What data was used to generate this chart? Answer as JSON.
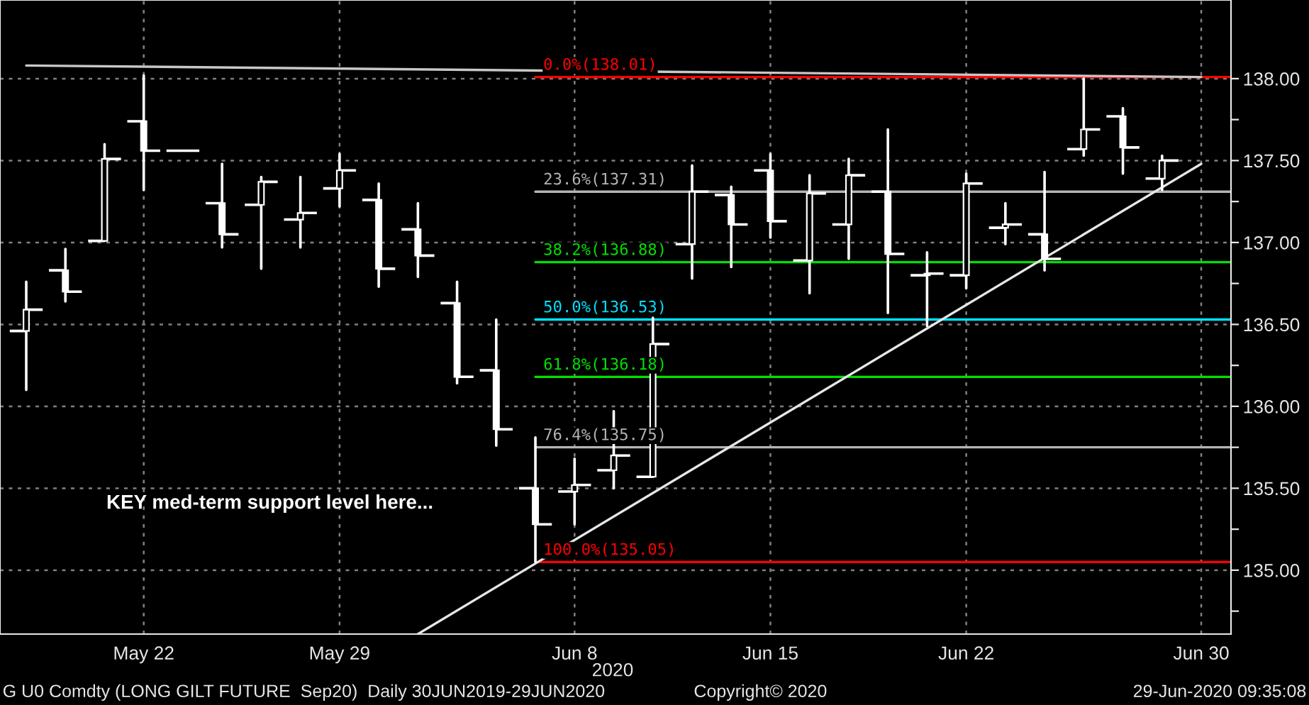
{
  "chart_data": {
    "type": "candlestick",
    "categories": [
      null,
      null,
      null,
      "May 22",
      null,
      null,
      null,
      null,
      "May 29",
      null,
      null,
      null,
      null,
      null,
      "Jun 8",
      null,
      null,
      null,
      null,
      "Jun 15",
      null,
      null,
      null,
      null,
      "Jun 22",
      null,
      null,
      null,
      null,
      null,
      "Jun 30"
    ],
    "ohlc": [
      [
        136.46,
        136.76,
        136.1,
        136.59
      ],
      [
        136.83,
        136.96,
        136.64,
        136.7
      ],
      [
        137.01,
        137.6,
        137.01,
        137.51
      ],
      [
        137.74,
        138.02,
        137.32,
        137.56
      ],
      [
        137.56,
        137.56,
        137.56,
        137.56
      ],
      [
        137.24,
        137.48,
        136.97,
        137.05
      ],
      [
        137.23,
        137.4,
        136.84,
        137.37
      ],
      [
        137.14,
        137.4,
        136.97,
        137.18
      ],
      [
        137.33,
        137.54,
        137.22,
        137.44
      ],
      [
        137.26,
        137.36,
        136.73,
        136.84
      ],
      [
        137.08,
        137.24,
        136.79,
        136.92
      ],
      [
        136.63,
        136.76,
        136.14,
        136.18
      ],
      [
        136.22,
        136.53,
        135.76,
        135.86
      ],
      [
        135.5,
        135.81,
        135.05,
        135.28
      ],
      [
        135.48,
        135.68,
        135.28,
        135.52
      ],
      [
        135.61,
        135.97,
        135.5,
        135.7
      ],
      [
        135.57,
        136.54,
        135.57,
        136.38
      ],
      [
        136.99,
        137.47,
        136.78,
        137.31
      ],
      [
        137.29,
        137.34,
        136.85,
        137.11
      ],
      [
        137.44,
        137.54,
        137.03,
        137.13
      ],
      [
        136.89,
        137.41,
        136.69,
        137.3
      ],
      [
        137.11,
        137.51,
        136.9,
        137.41
      ],
      [
        137.31,
        137.69,
        136.57,
        136.93
      ],
      [
        136.8,
        136.94,
        136.49,
        136.81
      ],
      [
        136.8,
        137.42,
        136.72,
        137.36
      ],
      [
        137.09,
        137.24,
        136.99,
        137.11
      ],
      [
        137.05,
        137.43,
        136.83,
        136.9
      ],
      [
        137.57,
        138.0,
        137.53,
        137.69
      ],
      [
        137.77,
        137.82,
        137.42,
        137.58
      ],
      [
        137.39,
        137.53,
        137.32,
        137.5
      ],
      null
    ],
    "color": "#ffffff",
    "series": [
      {
        "type": "line",
        "values": [
          138.08,
          null,
          null,
          null,
          null,
          null,
          null,
          null,
          null,
          null,
          null,
          null,
          null,
          null,
          null,
          null,
          null,
          null,
          null,
          null,
          null,
          null,
          null,
          null,
          null,
          null,
          null,
          null,
          null,
          null,
          138.01
        ],
        "color": "#c8c8c8"
      },
      {
        "type": "line",
        "values": [
          null,
          null,
          null,
          null,
          null,
          null,
          null,
          null,
          null,
          null,
          134.61,
          null,
          null,
          null,
          null,
          null,
          null,
          null,
          null,
          null,
          null,
          null,
          null,
          null,
          null,
          null,
          null,
          null,
          null,
          null,
          137.48
        ],
        "color": "#e6e6e6"
      }
    ],
    "ylim": [
      134.61,
      138.48
    ],
    "yticks": [
      {
        "value": 134.75,
        "label": null
      },
      {
        "value": 135,
        "label": "135.00"
      },
      {
        "value": 135.25,
        "label": null
      },
      {
        "value": 135.5,
        "label": "135.50"
      },
      {
        "value": 135.75,
        "label": null
      },
      {
        "value": 136,
        "label": "136.00"
      },
      {
        "value": 136.25,
        "label": null
      },
      {
        "value": 136.5,
        "label": "136.50"
      },
      {
        "value": 136.75,
        "label": null
      },
      {
        "value": 137,
        "label": "137.00"
      },
      {
        "value": 137.25,
        "label": null
      },
      {
        "value": 137.5,
        "label": "137.50"
      },
      {
        "value": 137.75,
        "label": null
      },
      {
        "value": 138,
        "label": "138.00"
      }
    ],
    "xlabel": "2020",
    "grid": true,
    "ref_lines": [
      {
        "axis": "y",
        "value": 138.01,
        "label": "0.0%(138.01)",
        "color": "#ff0000"
      },
      {
        "axis": "y",
        "value": 137.31,
        "label": "23.6%(137.31)",
        "color": "#b4b4b4"
      },
      {
        "axis": "y",
        "value": 136.88,
        "label": "38.2%(136.88)",
        "color": "#00e000"
      },
      {
        "axis": "y",
        "value": 136.53,
        "label": "50.0%(136.53)",
        "color": "#00e0ff"
      },
      {
        "axis": "y",
        "value": 136.18,
        "label": "61.8%(136.18)",
        "color": "#00e000"
      },
      {
        "axis": "y",
        "value": 135.75,
        "label": "76.4%(135.75)",
        "color": "#b4b4b4"
      },
      {
        "axis": "y",
        "value": 135.05,
        "label": "100.0%(135.05)",
        "color": "#ff0000"
      }
    ],
    "annotations": [
      "KEY med-term support level here...",
      "G U0 Comdty (LONG GILT FUTURE  Sep20)  Daily 30JUN2019-29JUN2020",
      "Copyright© 2020",
      "29-Jun-2020 09:35:08"
    ]
  }
}
